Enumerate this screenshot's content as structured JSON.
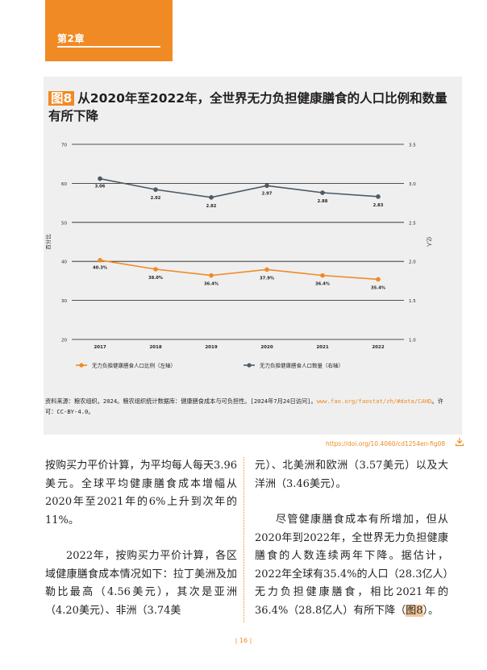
{
  "chapter": {
    "label": "第2章"
  },
  "figure": {
    "tag": "图8",
    "title": "从2020年至2022年，全世界无力负担健康膳食的人口比例和数量有所下降"
  },
  "chart_data": {
    "type": "line",
    "x": [
      "2017",
      "2018",
      "2019",
      "2020",
      "2021",
      "2022"
    ],
    "ylabel_left": "百分比",
    "ylabel_right": "亿人",
    "ylim_left": [
      20,
      70
    ],
    "yticks_left": [
      "70",
      "60",
      "50",
      "40",
      "30",
      "20"
    ],
    "ylim_right": [
      1.0,
      3.5
    ],
    "yticks_right": [
      "3.5",
      "3.0",
      "2.5",
      "2.0",
      "1.5",
      "1.0"
    ],
    "grid": "horizontal",
    "legend_position": "bottom",
    "series": [
      {
        "name": "无力负担健康膳食人口比例（左轴）",
        "axis": "left",
        "color": "#f08a24",
        "values": [
          40.3,
          38.0,
          36.4,
          37.9,
          36.4,
          35.4
        ],
        "labels": [
          "40.3%",
          "38.0%",
          "36.4%",
          "37.9%",
          "36.4%",
          "35.4%"
        ]
      },
      {
        "name": "无力负担健康膳食人口数量（右轴）",
        "axis": "right",
        "color": "#4d5a63",
        "values": [
          3.06,
          2.92,
          2.82,
          2.97,
          2.88,
          2.83
        ],
        "labels": [
          "3.06",
          "2.92",
          "2.82",
          "2.97",
          "2.88",
          "2.83"
        ]
      }
    ]
  },
  "source": {
    "text": "资料来源：粮农组织。2024。粮农组织统计数据库：健康膳食成本与可负担性。[2024年7月24日访问]。",
    "link": "www.fao.org/faostat/zh/#data/CAHD",
    "license": "。许可：CC-BY-4.0。"
  },
  "doi": "https://doi.org/10.4060/cd1254en-fig08",
  "body": {
    "left_p1": "按购买力平价计算，为平均每人每天3.96美元。全球平均健康膳食成本增幅从2020年至2021年的6%上升到次年的11%。",
    "left_p2": "2022年，按购买力平价计算，各区域健康膳食成本情况如下：拉丁美洲及加勒比最高（4.56美元），其次是亚洲（4.20美元）、非洲（3.74美",
    "right_p1": "元）、北美洲和欧洲（3.57美元）以及大洋洲（3.46美元）。",
    "right_p2_a": "尽管健康膳食成本有所增加，但从2020年到2022年，全世界无力负担健康膳食的人数连续两年下降。据估计，2022年全球有35.4%的人口（28.3亿人）无力负担健康膳食，相比2021年的36.4%（28.8亿人）有所下降（",
    "right_p2_ref": "图8",
    "right_p2_b": "）。"
  },
  "page_number": "| 16 |"
}
